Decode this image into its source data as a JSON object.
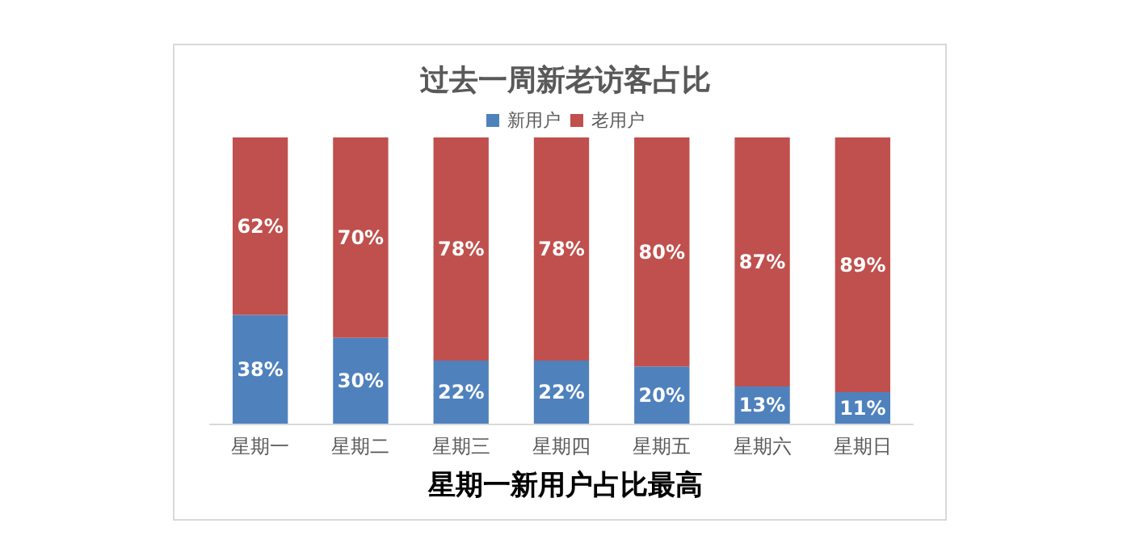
{
  "chart_data": {
    "type": "bar",
    "stacked": true,
    "title": "过去一周新老访客占比",
    "categories": [
      "星期一",
      "星期二",
      "星期三",
      "星期四",
      "星期五",
      "星期六",
      "星期日"
    ],
    "series": [
      {
        "name": "新用户",
        "color": "#4f81bd",
        "values": [
          38,
          30,
          22,
          22,
          20,
          13,
          11
        ],
        "value_labels": [
          "38%",
          "30%",
          "22%",
          "22%",
          "20%",
          "13%",
          "11%"
        ]
      },
      {
        "name": "老用户",
        "color": "#c0504d",
        "values": [
          62,
          70,
          78,
          78,
          80,
          87,
          89
        ],
        "value_labels": [
          "62%",
          "70%",
          "78%",
          "78%",
          "80%",
          "87%",
          "89%"
        ]
      }
    ],
    "legend": "top",
    "tick_labels": "x",
    "annotations": [
      "星期一新用户占比最高"
    ]
  }
}
